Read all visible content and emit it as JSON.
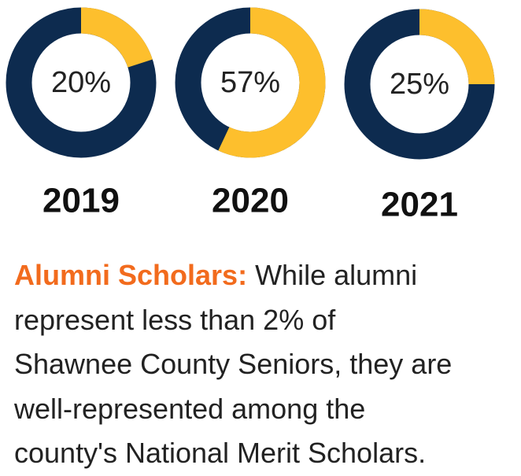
{
  "chart_data": [
    {
      "type": "donut",
      "title": "2019",
      "values": [
        20
      ],
      "value_labels": [
        "20%"
      ],
      "color": "#fdbf2d",
      "track_color": "#0d2b4f"
    },
    {
      "type": "donut",
      "title": "2020",
      "values": [
        57
      ],
      "value_labels": [
        "57%"
      ],
      "color": "#fdbf2d",
      "track_color": "#0d2b4f"
    },
    {
      "type": "donut",
      "title": "2021",
      "values": [
        25
      ],
      "value_labels": [
        "25%"
      ],
      "color": "#fdbf2d",
      "track_color": "#0d2b4f"
    }
  ],
  "caption": {
    "lead": "Alumni Scholars:",
    "lines": [
      "While alumni",
      "represent less than 2% of",
      "Shawnee County Seniors, they are",
      "well-represented among the",
      "county's National Merit Scholars."
    ]
  }
}
